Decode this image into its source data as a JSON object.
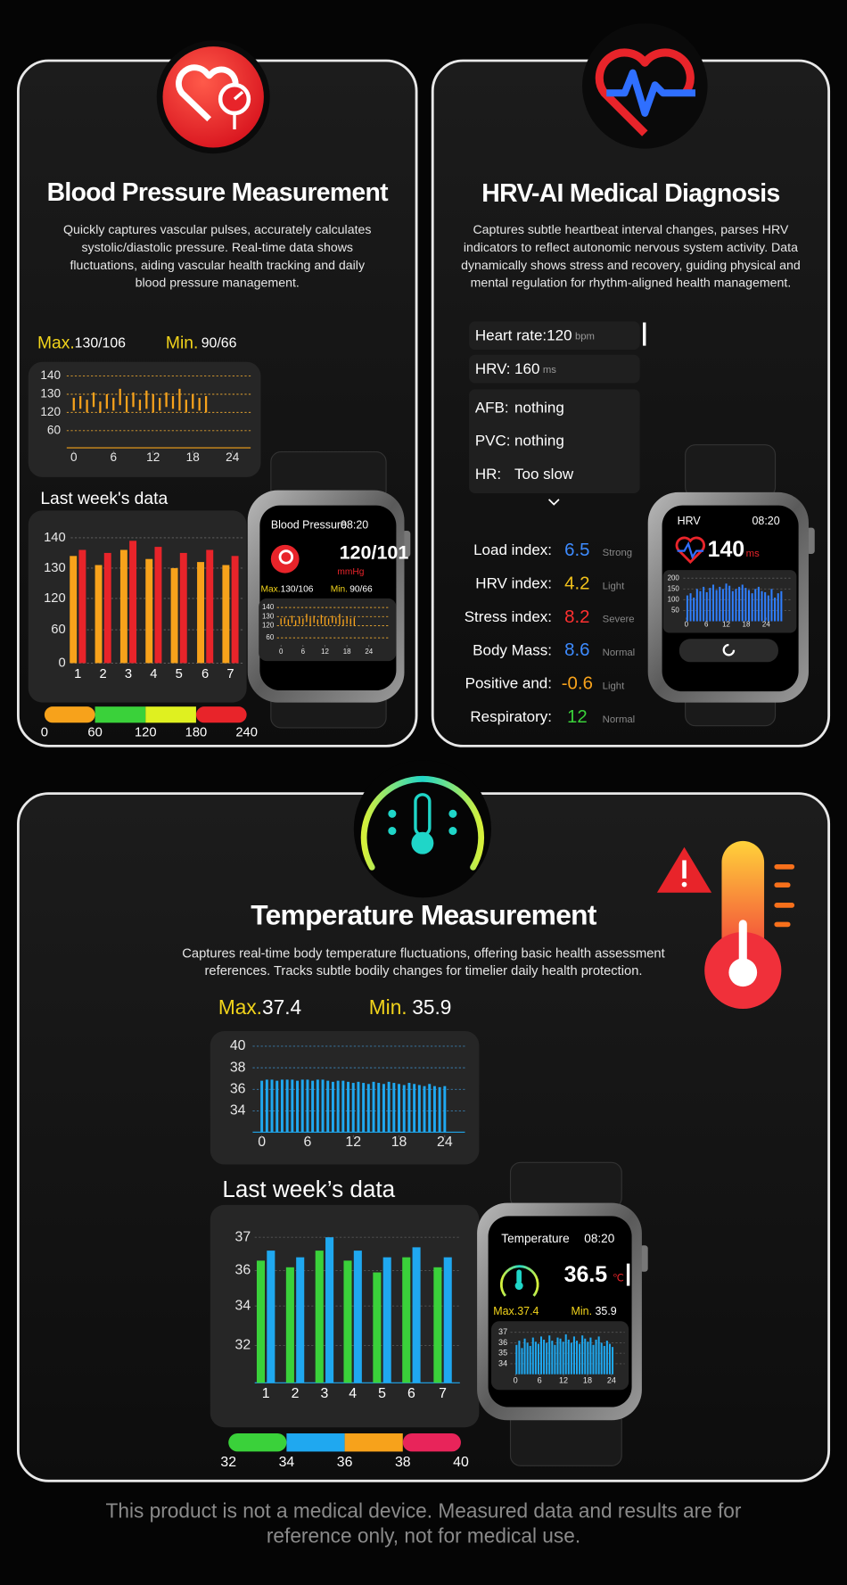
{
  "blood_pressure": {
    "title": "Blood Pressure Measurement",
    "description": [
      "Quickly captures vascular pulses, accurately calculates",
      "systolic/diastolic pressure. Real-time data shows",
      "fluctuations, aiding vascular health tracking and daily",
      "blood pressure management."
    ],
    "max_label": "Max.",
    "max_value": "130/106",
    "min_label": "Min.",
    "min_value": "90/66",
    "daily": {
      "yticks": [
        140,
        130,
        120,
        60
      ],
      "xticks": [
        0,
        6,
        12,
        18,
        24
      ],
      "color": "#f7a21b",
      "hours": [
        0,
        1,
        2,
        3,
        4,
        5,
        6,
        7,
        8,
        9,
        10,
        11,
        12,
        13,
        14,
        15,
        16,
        17,
        18,
        19,
        20
      ],
      "high": [
        128,
        129,
        127,
        131,
        126,
        130,
        128,
        133,
        129,
        131,
        127,
        132,
        130,
        128,
        131,
        129,
        133,
        127,
        130,
        128,
        129
      ],
      "low": [
        121,
        122,
        120,
        123,
        119,
        122,
        121,
        124,
        120,
        123,
        121,
        122,
        120,
        121,
        123,
        122,
        121,
        120,
        122,
        121,
        120
      ]
    },
    "weekly_title": "Last week's data",
    "weekly": {
      "yticks": [
        140,
        130,
        120,
        60,
        0
      ],
      "categories": [
        "1",
        "2",
        "3",
        "4",
        "5",
        "6",
        "7"
      ],
      "series": [
        {
          "color": "#f7a21b",
          "values": [
            134,
            131,
            136,
            133,
            130,
            132,
            131
          ]
        },
        {
          "color": "#e8242a",
          "values": [
            136,
            135,
            139,
            137,
            135,
            136,
            134
          ]
        }
      ]
    },
    "scale": {
      "labels": [
        0,
        60,
        120,
        180,
        240
      ],
      "colors": [
        "#f7a21b",
        "#3ad13a",
        "#dff020",
        "#e8242a"
      ]
    },
    "watch": {
      "title": "Blood Pressure",
      "time": "08:20",
      "reading": "120/101",
      "unit": "mmHg"
    }
  },
  "hrv": {
    "title": "HRV-AI Medical Diagnosis",
    "description": [
      "Captures subtle heartbeat interval changes, parses HRV",
      "indicators to reflect autonomic nervous system activity. Data",
      "dynamically shows stress and recovery, guiding physical and",
      "mental regulation for rhythm-aligned health management."
    ],
    "heart_rate": {
      "label": "Heart rate:",
      "value": 120,
      "unit": "bpm"
    },
    "hrv": {
      "label": "HRV:",
      "value": 160,
      "unit": "ms"
    },
    "diagnosis": [
      {
        "label": "AFB:",
        "value": "nothing"
      },
      {
        "label": "PVC:",
        "value": "nothing"
      },
      {
        "label": "HR:",
        "value": "Too slow"
      }
    ],
    "indices": [
      {
        "label": "Load index:",
        "value": 6.5,
        "status": "Strong",
        "color": "#3d8bff"
      },
      {
        "label": "HRV index:",
        "value": 4.2,
        "status": "Light",
        "color": "#f2c21b"
      },
      {
        "label": "Stress index:",
        "value": 8.2,
        "status": "Severe",
        "color": "#ff3030"
      },
      {
        "label": "Body Mass:",
        "value": 8.6,
        "status": "Normal",
        "color": "#3d8bff"
      },
      {
        "label": "Positive and:",
        "value": -0.6,
        "status": "Light",
        "color": "#f7a21b"
      },
      {
        "label": "Respiratory:",
        "value": 12,
        "status": "Normal",
        "color": "#3ad13a"
      }
    ],
    "watch": {
      "title": "HRV",
      "time": "08:20",
      "reading": 140,
      "unit": "ms",
      "yticks": [
        200,
        150,
        100,
        50
      ],
      "ylim": [
        0,
        200
      ],
      "xticks": [
        0,
        6,
        12,
        18,
        24
      ],
      "color": "#2f7fff",
      "values": [
        120,
        130,
        110,
        150,
        140,
        160,
        135,
        155,
        170,
        145,
        160,
        150,
        175,
        165,
        140,
        150,
        160,
        170,
        155,
        145,
        130,
        150,
        160,
        140,
        135,
        120,
        150,
        110,
        130,
        140
      ]
    }
  },
  "temperature": {
    "title": "Temperature Measurement",
    "description": [
      "Captures real-time body temperature fluctuations, offering basic health assessment",
      "references. Tracks subtle bodily changes for timelier daily health protection."
    ],
    "max_label": "Max.",
    "max_value": 37.4,
    "min_label": "Min.",
    "min_value": 35.9,
    "daily": {
      "yticks": [
        40,
        38,
        36,
        34
      ],
      "ylim": [
        32,
        40
      ],
      "xticks": [
        0,
        6,
        12,
        18,
        24
      ],
      "color": "#1fa8f0",
      "values": [
        36.8,
        36.9,
        36.9,
        36.8,
        36.9,
        36.9,
        36.9,
        36.8,
        36.9,
        36.9,
        36.8,
        36.9,
        36.9,
        36.8,
        36.7,
        36.8,
        36.8,
        36.7,
        36.6,
        36.7,
        36.6,
        36.5,
        36.7,
        36.6,
        36.5,
        36.7,
        36.6,
        36.5,
        36.4,
        36.6,
        36.5,
        36.4,
        36.3,
        36.5,
        36.3,
        36.2,
        36.3
      ]
    },
    "weekly_title": "Last week’s data",
    "weekly": {
      "yticks": [
        37,
        36,
        34,
        32
      ],
      "categories": [
        "1",
        "2",
        "3",
        "4",
        "5",
        "6",
        "7"
      ],
      "series": [
        {
          "color": "#3ad13a",
          "values": [
            36.3,
            36.1,
            36.6,
            36.3,
            35.9,
            36.4,
            36.1
          ]
        },
        {
          "color": "#1fa8f0",
          "values": [
            36.6,
            36.4,
            37,
            36.6,
            36.4,
            36.7,
            36.4
          ]
        }
      ]
    },
    "scale": {
      "labels": [
        32,
        34,
        36,
        38,
        40
      ],
      "colors": [
        "#3ad13a",
        "#1fa8f0",
        "#f7a21b",
        "#e8245a"
      ]
    },
    "watch": {
      "title": "Temperature",
      "time": "08:20",
      "reading": 36.5,
      "unit": "℃",
      "yticks": [
        37,
        36,
        35,
        34
      ],
      "ylim": [
        33,
        37
      ],
      "xticks": [
        0,
        6,
        12,
        18,
        24
      ],
      "color": "#1fa8f0",
      "values": [
        35.8,
        36.2,
        35.5,
        36.4,
        36.0,
        35.7,
        36.5,
        36.1,
        35.9,
        36.6,
        36.3,
        36.0,
        36.7,
        36.2,
        35.8,
        36.5,
        36.4,
        36.1,
        36.8,
        36.3,
        36.0,
        36.6,
        36.2,
        35.9,
        36.7,
        36.4,
        36.1,
        36.5,
        35.8,
        36.3,
        36.6,
        36.0,
        35.7,
        36.2,
        35.9,
        35.6
      ]
    }
  },
  "footer": [
    "This product is not a medical device. Measured data and results are for",
    "reference only, not for medical use."
  ]
}
